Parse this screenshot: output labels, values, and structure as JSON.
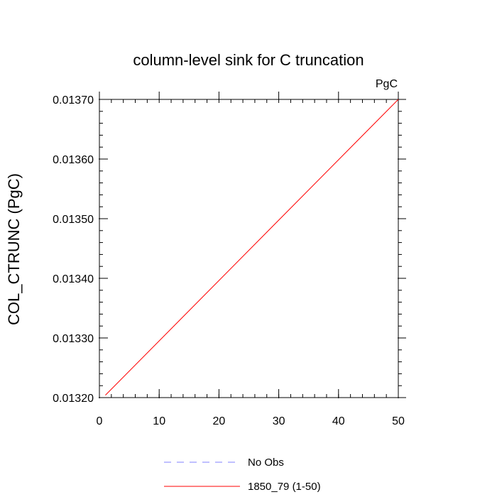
{
  "chart_data": {
    "type": "line",
    "title": "column-level sink for C truncation",
    "units_label": "PgC",
    "xlabel": "",
    "ylabel": "COL_CTRUNC  (PgC)",
    "xlim": [
      0,
      50
    ],
    "ylim": [
      0.0132,
      0.0137
    ],
    "x_ticks": [
      0,
      10,
      20,
      30,
      40,
      50
    ],
    "x_tick_labels": [
      "0",
      "10",
      "20",
      "30",
      "40",
      "50"
    ],
    "y_ticks": [
      0.0132,
      0.0133,
      0.0134,
      0.0135,
      0.0136,
      0.0137
    ],
    "y_tick_labels": [
      "0.01320",
      "0.01330",
      "0.01340",
      "0.01350",
      "0.01360",
      "0.01370"
    ],
    "grid": false,
    "legend_position": "bottom-center",
    "series": [
      {
        "name": "No Obs",
        "style": "dashed",
        "color": "#8080ff",
        "x": [],
        "y": []
      },
      {
        "name": "1850_79 (1-50)",
        "style": "solid",
        "color": "#ff0000",
        "x": [
          1,
          50
        ],
        "y": [
          0.013204,
          0.0137
        ]
      }
    ]
  }
}
